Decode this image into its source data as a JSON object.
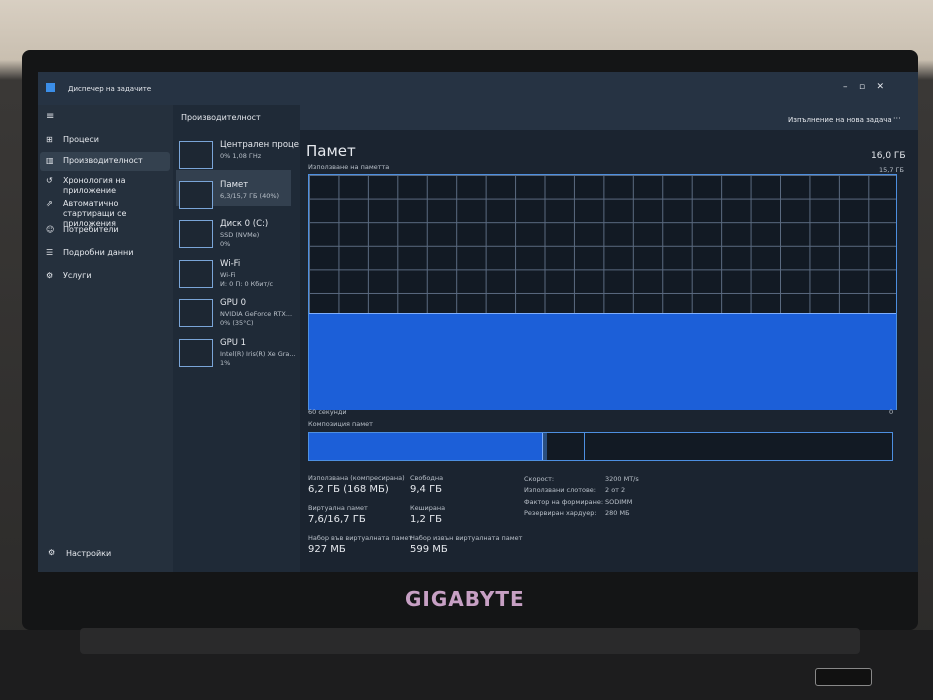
{
  "window": {
    "title": "Диспечер на задачите"
  },
  "nav": [
    "Процеси",
    "Производителност",
    "Хронология на приложение",
    "Автоматично стартиращи се приложения",
    "Потребители",
    "Подробни данни",
    "Услуги"
  ],
  "settings": "Настройки",
  "header": {
    "title": "Производителност",
    "action": "Изпълнение на нова задача"
  },
  "devices": [
    {
      "name": "Централен проце",
      "lines": [
        "0% 1,08 ГHz"
      ]
    },
    {
      "name": "Памет",
      "lines": [
        "6,3/15,7 ГБ (40%)"
      ]
    },
    {
      "name": "Диск 0 (C:)",
      "lines": [
        "SSD (NVMe)",
        "0%"
      ]
    },
    {
      "name": "Wi-Fi",
      "lines": [
        "Wi-Fi",
        "И: 0 П: 0 Кбит/с"
      ]
    },
    {
      "name": "GPU 0",
      "lines": [
        "NVIDIA GeForce RTX...",
        "0% (35°C)"
      ]
    },
    {
      "name": "GPU 1",
      "lines": [
        "Intel(R) Iris(R) Xe Gra...",
        "1%"
      ]
    }
  ],
  "panel": {
    "title": "Памет",
    "total": "16,0 ГБ",
    "graph_label": "Използване на паметта",
    "graph_max": "15,7 ГБ",
    "time_left": "60 секунди",
    "time_right": "0",
    "composition_label": "Композиция памет",
    "stats": [
      {
        "label": "Използвана (компресирана)",
        "value": "6,2 ГБ (168 МБ)"
      },
      {
        "label": "Свободна",
        "value": "9,4 ГБ"
      },
      {
        "label": "Виртуална памет",
        "value": "7,6/16,7 ГБ"
      },
      {
        "label": "Кеширана",
        "value": "1,2 ГБ"
      },
      {
        "label": "Набор във виртуалната памет",
        "value": "927 МБ"
      },
      {
        "label": "Набор извън виртуалната памет",
        "value": "599 МБ"
      }
    ],
    "specs": [
      {
        "label": "Скорост:",
        "value": "3200 MT/s"
      },
      {
        "label": "Използвани слотове:",
        "value": "2 от 2"
      },
      {
        "label": "Фактор на формиране:",
        "value": "SODIMM"
      },
      {
        "label": "Резервиран хардуер:",
        "value": "280 МБ"
      }
    ]
  },
  "brand": "GIGABYTE"
}
